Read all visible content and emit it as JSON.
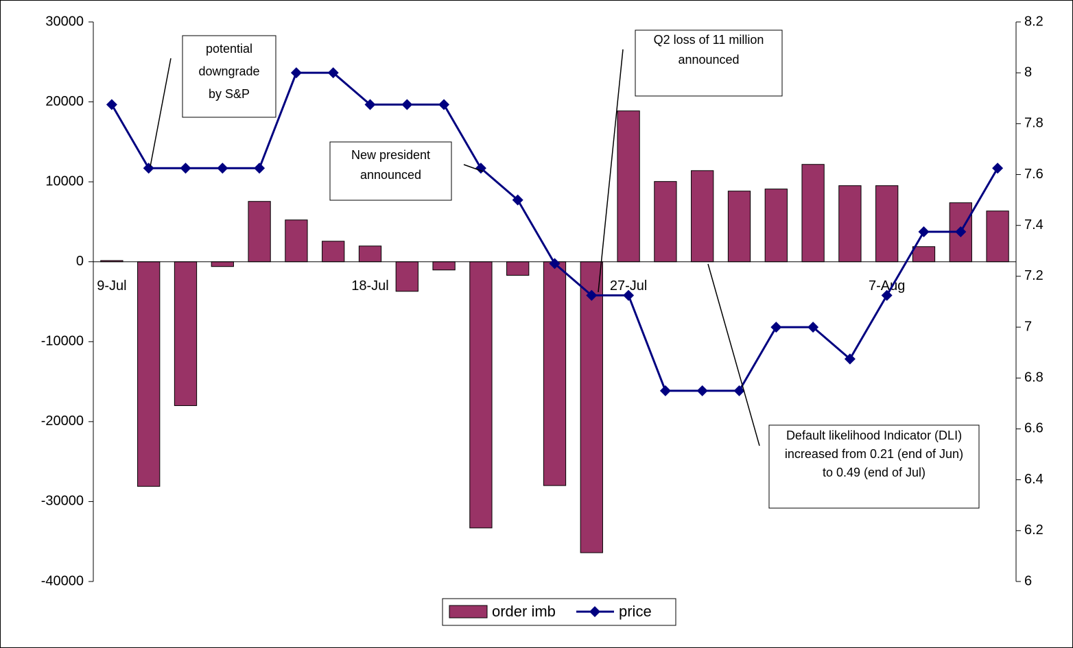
{
  "chart_data": {
    "type": "bar-line",
    "categories": [
      "9-Jul",
      null,
      null,
      null,
      null,
      null,
      null,
      "18-Jul",
      null,
      null,
      null,
      null,
      null,
      null,
      "27-Jul",
      null,
      null,
      null,
      null,
      null,
      null,
      "7-Aug",
      null,
      null,
      null
    ],
    "series": [
      {
        "name": "order imb",
        "color": "#993366",
        "type": "bar",
        "values": [
          150,
          -28100,
          -18000,
          -600,
          7550,
          5230,
          2570,
          1970,
          -3700,
          -1030,
          -33300,
          -1700,
          -28000,
          -36400,
          18870,
          10040,
          11400,
          8840,
          9100,
          12180,
          9520,
          9520,
          1890,
          7380,
          6350
        ]
      },
      {
        "name": "price",
        "color": "#000080",
        "type": "line",
        "axis": "y2",
        "values": [
          7.875,
          7.625,
          7.625,
          7.625,
          7.625,
          8,
          8,
          7.875,
          7.875,
          7.875,
          7.625,
          7.5,
          7.25,
          7.125,
          7.125,
          6.75,
          6.75,
          6.75,
          7,
          7,
          6.875,
          7.125,
          7.375,
          7.375,
          7.625
        ]
      }
    ],
    "ylim": [
      -40000,
      30000
    ],
    "yticks": [
      -40000,
      -30000,
      -20000,
      -10000,
      0,
      10000,
      20000,
      30000
    ],
    "y2lim": [
      6,
      8.2
    ],
    "y2ticks": [
      6,
      6.2,
      6.4,
      6.6,
      6.8,
      7,
      7.2,
      7.4,
      7.6,
      7.8,
      8,
      8.2
    ],
    "legend": "bottom",
    "annotations": [
      {
        "lines": [
          "potential",
          "downgrade",
          "by S&P"
        ]
      },
      {
        "lines": [
          "Q2 loss of 11 million",
          "announced"
        ]
      },
      {
        "lines": [
          "New president",
          "announced"
        ]
      },
      {
        "lines": [
          "Default likelihood Indicator (DLI)",
          "increased from 0.21 (end of Jun)",
          "to 0.49 (end of Jul)"
        ]
      }
    ]
  }
}
